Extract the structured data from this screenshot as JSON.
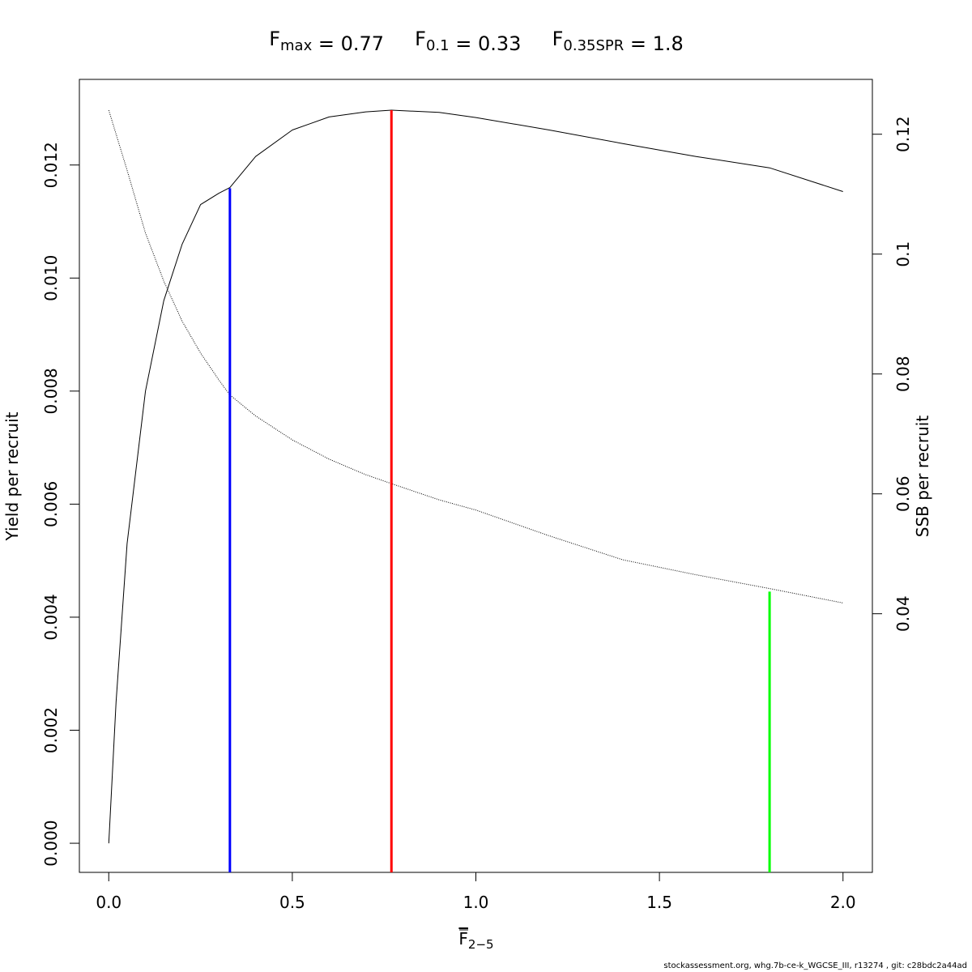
{
  "chart_data": {
    "type": "line",
    "title": {
      "parts": [
        {
          "base": "F",
          "sub": "max",
          "rest": " = 0.77"
        },
        {
          "base": "F",
          "sub": "0.1",
          "rest": " = 0.33"
        },
        {
          "base": "F",
          "sub": "0.35SPR",
          "rest": " = 1.8"
        }
      ]
    },
    "xlabel": {
      "base": "F",
      "sub": "2−5",
      "overline": true
    },
    "ylabel": "Yield per recruit",
    "y2label": "SSB per recruit",
    "xlim": [
      -0.08,
      2.08
    ],
    "ylim": [
      -0.000515,
      0.013515
    ],
    "y2lim": [
      -0.00315,
      0.12915
    ],
    "x_ticks": [
      0,
      0.5,
      1,
      1.5,
      2
    ],
    "x_tick_labels": [
      "0.0",
      "0.5",
      "1.0",
      "1.5",
      "2.0"
    ],
    "y_ticks": [
      0,
      0.002,
      0.004,
      0.006,
      0.008,
      0.01,
      0.012
    ],
    "y_tick_labels": [
      "0.000",
      "0.002",
      "0.004",
      "0.006",
      "0.008",
      "0.010",
      "0.012"
    ],
    "y2_ticks": [
      0.04,
      0.06,
      0.08,
      0.1,
      0.12
    ],
    "y2_tick_labels": [
      "0.04",
      "0.06",
      "0.08",
      "0.1",
      "0.12"
    ],
    "grid": false,
    "series": [
      {
        "axis": "left",
        "style": "solid",
        "color": "#000000",
        "x": [
          0,
          0.02,
          0.05,
          0.1,
          0.15,
          0.2,
          0.25,
          0.3,
          0.33,
          0.4,
          0.5,
          0.6,
          0.7,
          0.77,
          0.9,
          1.0,
          1.2,
          1.4,
          1.6,
          1.8,
          2.0
        ],
        "values": [
          0,
          0.0025,
          0.0053,
          0.008,
          0.0096,
          0.0106,
          0.0113,
          0.0115,
          0.0116,
          0.01215,
          0.01262,
          0.01285,
          0.01294,
          0.01297,
          0.01293,
          0.01284,
          0.01262,
          0.01238,
          0.01215,
          0.01195,
          0.01153
        ]
      },
      {
        "axis": "right",
        "style": "dotted",
        "color": "#000000",
        "x": [
          0,
          0.05,
          0.1,
          0.15,
          0.2,
          0.25,
          0.3,
          0.33,
          0.4,
          0.5,
          0.6,
          0.7,
          0.77,
          0.9,
          1.0,
          1.2,
          1.4,
          1.6,
          1.8,
          2.0
        ],
        "values": [
          0.124,
          0.114,
          0.1035,
          0.0955,
          0.0888,
          0.0835,
          0.079,
          0.0765,
          0.073,
          0.069,
          0.0658,
          0.0632,
          0.0617,
          0.059,
          0.0573,
          0.053,
          0.049,
          0.0465,
          0.0442,
          0.0418
        ]
      }
    ],
    "reference_lines": [
      {
        "x": 0.33,
        "from": 0,
        "to_y": 0.01159,
        "color": "#0000ff"
      },
      {
        "x": 0.77,
        "from": 0,
        "to_y": 0.01297,
        "color": "#ff0000"
      },
      {
        "x": 1.8,
        "from": 0,
        "to_y2": 0.0437,
        "color": "#00ff00"
      }
    ]
  },
  "footer": "stockassessment.org, whg.7b-ce-k_WGCSE_III, r13274 , git: c28bdc2a44ad"
}
